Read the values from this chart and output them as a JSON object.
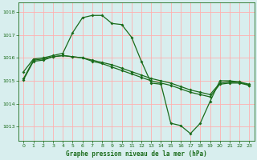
{
  "title": "Graphe pression niveau de la mer (hPa)",
  "background_color": "#d8eeee",
  "grid_color": "#ffb0b0",
  "line_color": "#1a6b1a",
  "ylim": [
    1012.4,
    1018.4
  ],
  "xlim": [
    -0.5,
    23.5
  ],
  "yticks": [
    1013,
    1014,
    1015,
    1016,
    1017,
    1018
  ],
  "xticks": [
    0,
    1,
    2,
    3,
    4,
    5,
    6,
    7,
    8,
    9,
    10,
    11,
    12,
    13,
    14,
    15,
    16,
    17,
    18,
    19,
    20,
    21,
    22,
    23
  ],
  "line1_x": [
    0,
    1,
    2,
    3,
    4,
    5,
    6,
    7,
    8,
    9,
    10,
    11,
    12,
    13,
    14,
    15,
    16,
    17,
    18,
    19,
    20,
    21,
    22,
    23
  ],
  "line1_y": [
    1015.1,
    1015.9,
    1015.95,
    1016.05,
    1016.1,
    1016.05,
    1016.0,
    1015.9,
    1015.8,
    1015.7,
    1015.55,
    1015.4,
    1015.25,
    1015.1,
    1015.0,
    1014.9,
    1014.75,
    1014.6,
    1014.5,
    1014.4,
    1014.9,
    1014.95,
    1014.95,
    1014.85
  ],
  "line2_x": [
    0,
    1,
    2,
    3,
    4,
    5,
    6,
    7,
    8,
    9,
    10,
    11,
    12,
    13,
    14,
    15,
    16,
    17,
    18,
    19,
    20,
    21,
    22,
    23
  ],
  "line2_y": [
    1015.05,
    1015.85,
    1015.9,
    1016.05,
    1016.1,
    1016.05,
    1016.0,
    1015.85,
    1015.75,
    1015.6,
    1015.45,
    1015.3,
    1015.15,
    1015.0,
    1014.9,
    1014.8,
    1014.65,
    1014.5,
    1014.4,
    1014.3,
    1014.85,
    1014.9,
    1014.9,
    1014.8
  ],
  "line3_x": [
    0,
    1,
    2,
    3,
    4,
    5,
    6,
    7,
    8,
    9,
    10,
    11,
    12,
    13,
    14,
    15,
    16,
    17,
    18,
    19,
    20,
    21,
    22,
    23
  ],
  "line3_y": [
    1015.4,
    1015.95,
    1016.0,
    1016.1,
    1016.2,
    1017.1,
    1017.75,
    1017.85,
    1017.85,
    1017.5,
    1017.45,
    1016.9,
    1015.85,
    1014.9,
    1014.85,
    1013.15,
    1013.05,
    1012.7,
    1013.15,
    1014.1,
    1015.0,
    1015.0,
    1014.95,
    1014.8
  ]
}
